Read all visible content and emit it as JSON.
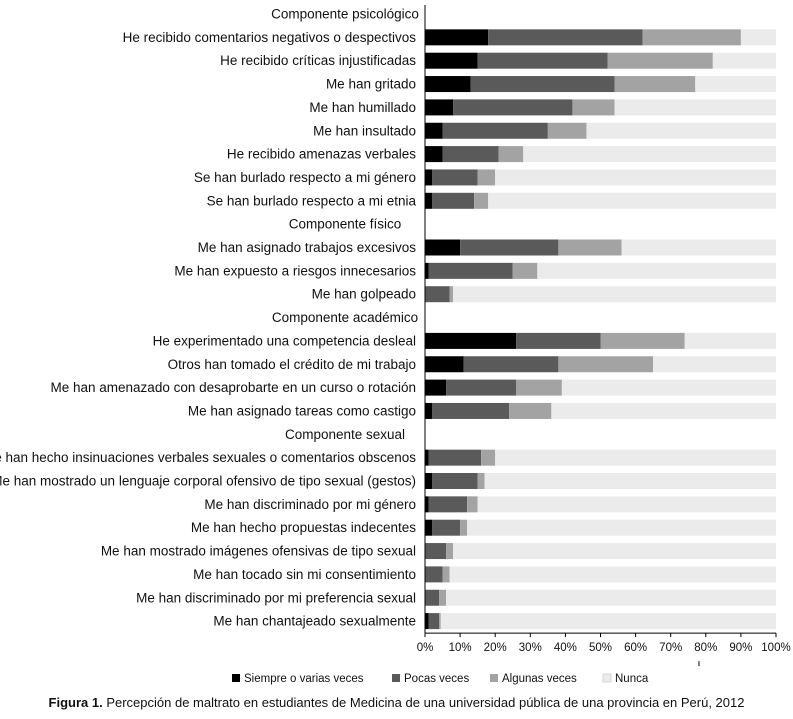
{
  "caption": {
    "label": "Figura 1.",
    "text": "Percepción de maltrato en estudiantes de Medicina de una universidad pública de una provincia en Perú, 2012"
  },
  "colors": {
    "series": [
      "#000000",
      "#5a5a5a",
      "#a3a3a3",
      "#ebebeb"
    ],
    "axis": "#000000"
  },
  "chart_data": {
    "type": "bar",
    "orientation": "horizontal",
    "stacked": true,
    "xlim": [
      0,
      100
    ],
    "x_ticks": [
      "0%",
      "10%",
      "20%",
      "30%",
      "40%",
      "50%",
      "60%",
      "70%",
      "80%",
      "90%",
      "100%"
    ],
    "legend_position": "bottom",
    "series": [
      {
        "name": "Siempre o varias veces",
        "color": "#000000"
      },
      {
        "name": "Pocas veces",
        "color": "#5a5a5a"
      },
      {
        "name": "Algunas veces",
        "color": "#a3a3a3"
      },
      {
        "name": "Nunca",
        "color": "#ebebeb"
      }
    ],
    "rows": [
      {
        "label": "Componente psicológico",
        "header": true
      },
      {
        "label": "He recibido comentarios negativos o despectivos",
        "values": [
          18,
          44,
          28,
          10
        ]
      },
      {
        "label": "He recibido críticas injustificadas",
        "values": [
          15,
          37,
          30,
          18
        ]
      },
      {
        "label": "Me han  gritado",
        "values": [
          13,
          41,
          23,
          23
        ]
      },
      {
        "label": "Me han  humillado",
        "values": [
          8,
          34,
          12,
          46
        ]
      },
      {
        "label": "Me han  insultado",
        "values": [
          5,
          30,
          11,
          54
        ]
      },
      {
        "label": "He recibido  amenazas verbales",
        "values": [
          5,
          16,
          7,
          72
        ]
      },
      {
        "label": "Se han burlado respecto a mi género",
        "values": [
          2,
          13,
          5,
          80
        ]
      },
      {
        "label": "Se han burlado respecto a mi etnia",
        "values": [
          2,
          12,
          4,
          82
        ]
      },
      {
        "label": "Componente físico",
        "header": true
      },
      {
        "label": "Me han asignado trabajos excesivos",
        "values": [
          10,
          28,
          18,
          44
        ]
      },
      {
        "label": "Me han expuesto a riesgos innecesarios",
        "values": [
          1,
          24,
          7,
          68
        ]
      },
      {
        "label": "Me han golpeado",
        "values": [
          0,
          7,
          1,
          92
        ]
      },
      {
        "label": "Componente académico",
        "header": true
      },
      {
        "label": "He experimentado una competencia desleal",
        "values": [
          26,
          24,
          24,
          26
        ]
      },
      {
        "label": "Otros han tomado  el crédito de mi trabajo",
        "values": [
          11,
          27,
          27,
          35
        ]
      },
      {
        "label": "Me han amenazado con desaprobarte en un curso o rotación",
        "values": [
          6,
          20,
          13,
          61
        ]
      },
      {
        "label": "Me han asignado tareas como castigo",
        "values": [
          2,
          22,
          12,
          64
        ]
      },
      {
        "label": "Componente sexual",
        "header": true
      },
      {
        "label": "Me han hecho insinuaciones verbales sexuales o comentarios obscenos",
        "values": [
          1,
          15,
          4,
          80
        ]
      },
      {
        "label": "Me han mostrado un lenguaje corporal ofensivo de tipo sexual (gestos)",
        "values": [
          2,
          13,
          2,
          83
        ]
      },
      {
        "label": "Me han discriminado por mi género",
        "values": [
          1,
          11,
          3,
          85
        ]
      },
      {
        "label": "Me han hecho propuestas indecentes",
        "values": [
          2,
          8,
          2,
          88
        ]
      },
      {
        "label": "Me han mostrado imágenes ofensivas de tipo sexual",
        "values": [
          0,
          6,
          2,
          92
        ]
      },
      {
        "label": "Me han tocado sin mi consentimiento",
        "values": [
          0,
          5,
          2,
          93
        ]
      },
      {
        "label": "Me han discriminado por mi preferencia sexual",
        "values": [
          0,
          4,
          2,
          94
        ]
      },
      {
        "label": "Me han chantajeado sexualmente",
        "values": [
          1,
          3,
          0.5,
          95.5
        ]
      }
    ]
  }
}
